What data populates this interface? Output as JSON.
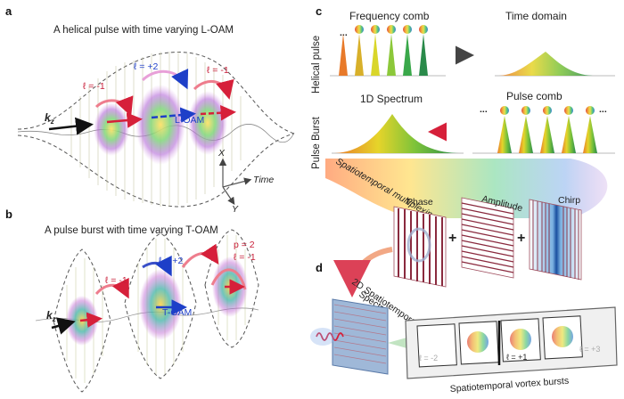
{
  "panels": {
    "a": {
      "letter": "a",
      "title": "A helical pulse with time varying L-OAM",
      "l_left": "ℓ = -1",
      "l_mid": "ℓ = +2",
      "l_right": "ℓ = -1",
      "kz": "k",
      "kz_sub": "z",
      "oam": "L-OAM",
      "axis_x": "X",
      "axis_time": "Time",
      "axis_y": "Y"
    },
    "b": {
      "letter": "b",
      "title": "A pulse burst with time varying T-OAM",
      "l_left": "ℓ = -1",
      "l_mid": "ℓ = +2",
      "p_right": "p = 2",
      "l_right": "ℓ = -1",
      "kz": "k",
      "kz_sub": "z",
      "oam": "T-OAM"
    },
    "c": {
      "letter": "c",
      "freq_comb": "Frequency comb",
      "time_domain": "Time domain",
      "row1": "Helical pulse",
      "spectrum": "1D Spectrum",
      "pulse_comb": "Pulse comb",
      "row2": "Pulse Burst",
      "ellipsis": "..."
    },
    "d": {
      "letter": "d",
      "multiplexing": "Spatiotemporal multiplexing",
      "phase": "Phase",
      "amplitude": "Amplitude",
      "chirp": "Chirp",
      "plus": "+",
      "spectra_l1": "2D Spatiotemporal",
      "spectra_l2": "Spectra",
      "film_l1": "ℓ = -2",
      "film_l2": "ℓ = +1",
      "film_l3": "ℓ = +3",
      "bursts": "Spatiotemporal vortex bursts"
    }
  }
}
